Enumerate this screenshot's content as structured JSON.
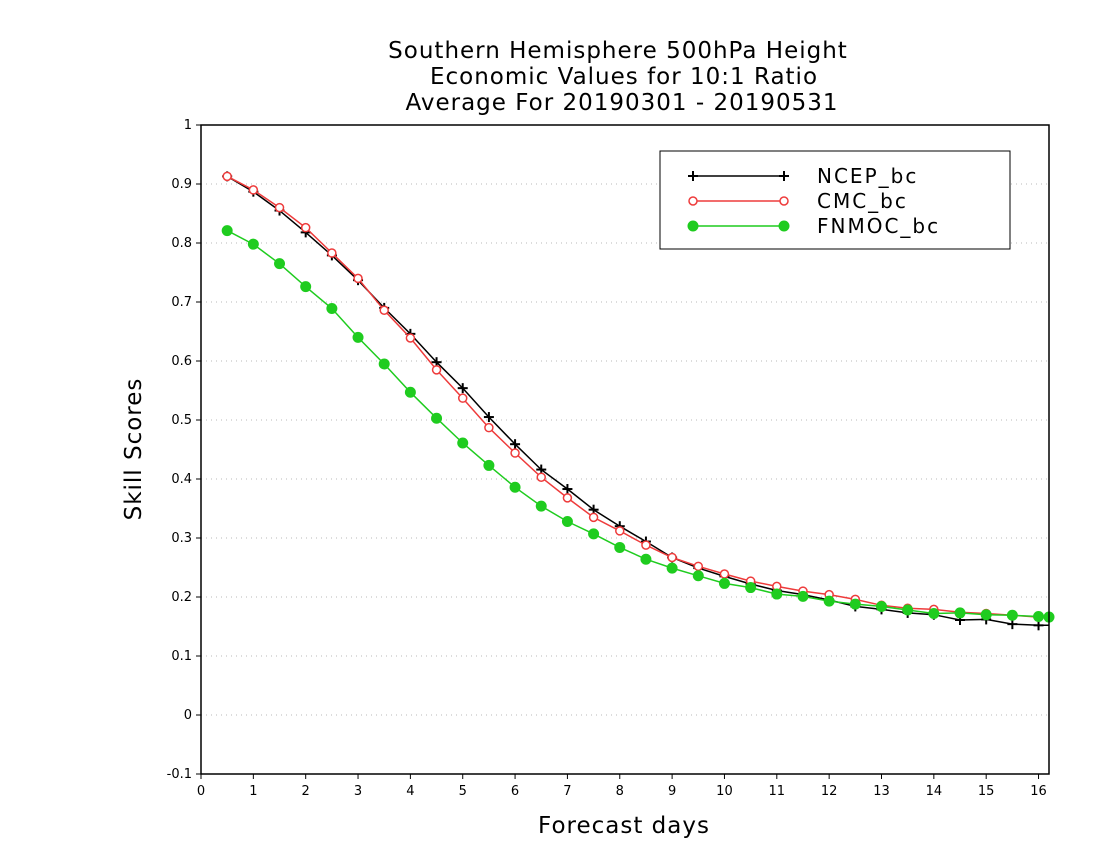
{
  "chart_data": {
    "type": "line",
    "title": [
      "Southern Hemisphere 500hPa Height",
      "Economic Values for 10:1 Ratio",
      "Average For 20190301 - 20190531"
    ],
    "xlabel": "Forecast days",
    "ylabel": "Skill Scores",
    "xlim": [
      0,
      16.2
    ],
    "ylim": [
      -0.1,
      1
    ],
    "xticks": [
      0,
      1,
      2,
      3,
      4,
      5,
      6,
      7,
      8,
      9,
      10,
      11,
      12,
      13,
      14,
      15,
      16
    ],
    "yticks": [
      -0.1,
      0,
      0.1,
      0.2,
      0.3,
      0.4,
      0.5,
      0.6,
      0.7,
      0.8,
      0.9,
      1
    ],
    "ytick_labels": [
      "-0.1",
      "0",
      "0.1",
      "0.2",
      "0.3",
      "0.4",
      "0.5",
      "0.6",
      "0.7",
      "0.8",
      "0.9",
      "1"
    ],
    "grid": "horizontal dotted",
    "legend_position": "top-right",
    "x": [
      0.5,
      1,
      1.5,
      2,
      2.5,
      3,
      3.5,
      4,
      4.5,
      5,
      5.5,
      6,
      6.5,
      7,
      7.5,
      8,
      8.5,
      9,
      9.5,
      10,
      10.5,
      11,
      11.5,
      12,
      12.5,
      13,
      13.5,
      14,
      14.5,
      15,
      15.5,
      16,
      16.2
    ],
    "series": [
      {
        "name": "NCEP_bc",
        "color": "#000000",
        "marker": "plus",
        "values": [
          0.913,
          0.887,
          0.855,
          0.818,
          0.779,
          0.737,
          0.69,
          0.646,
          0.598,
          0.554,
          0.505,
          0.459,
          0.416,
          0.383,
          0.348,
          0.32,
          0.294,
          0.267,
          0.249,
          0.235,
          0.222,
          0.211,
          0.204,
          0.195,
          0.184,
          0.179,
          0.173,
          0.17,
          0.161,
          0.162,
          0.154,
          0.152,
          0.152
        ]
      },
      {
        "name": "CMC_bc",
        "color": "#ee3b3b",
        "marker": "open-circle",
        "values": [
          0.913,
          0.89,
          0.86,
          0.826,
          0.783,
          0.74,
          0.686,
          0.639,
          0.585,
          0.537,
          0.487,
          0.444,
          0.403,
          0.368,
          0.335,
          0.312,
          0.288,
          0.267,
          0.252,
          0.239,
          0.227,
          0.218,
          0.21,
          0.204,
          0.196,
          0.186,
          0.181,
          0.179,
          0.174,
          0.172,
          0.169,
          0.166,
          0.166
        ]
      },
      {
        "name": "FNMOC_bc",
        "color": "#1fcc1f",
        "marker": "filled-circle",
        "values": [
          0.821,
          0.798,
          0.765,
          0.726,
          0.689,
          0.64,
          0.595,
          0.547,
          0.503,
          0.461,
          0.423,
          0.386,
          0.354,
          0.328,
          0.307,
          0.284,
          0.264,
          0.249,
          0.236,
          0.223,
          0.216,
          0.205,
          0.201,
          0.193,
          0.188,
          0.184,
          0.178,
          0.172,
          0.173,
          0.17,
          0.169,
          0.167,
          0.166
        ]
      }
    ]
  }
}
